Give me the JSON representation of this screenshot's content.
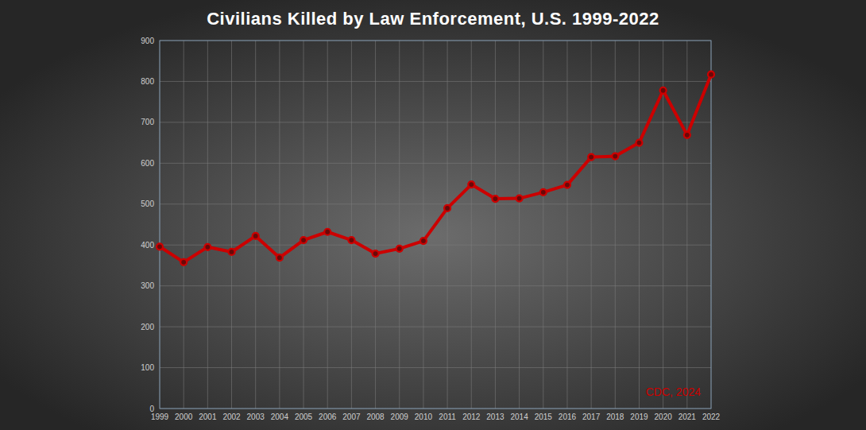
{
  "chart_data": {
    "type": "line",
    "title": "Civilians Killed by Law Enforcement, U.S. 1999-2022",
    "annotation": "CDC, 2024",
    "categories": [
      "1999",
      "2000",
      "2001",
      "2002",
      "2003",
      "2004",
      "2005",
      "2006",
      "2007",
      "2008",
      "2009",
      "2010",
      "2011",
      "2012",
      "2013",
      "2014",
      "2015",
      "2016",
      "2017",
      "2018",
      "2019",
      "2020",
      "2021",
      "2022"
    ],
    "values": [
      396,
      358,
      395,
      383,
      422,
      369,
      412,
      432,
      412,
      379,
      391,
      410,
      490,
      548,
      513,
      514,
      529,
      547,
      615,
      617,
      650,
      778,
      669,
      817
    ],
    "color": "#cc0000",
    "marker": "circle",
    "line_style": "solid",
    "ylim": [
      0,
      900
    ],
    "yticks": [
      0,
      100,
      200,
      300,
      400,
      500,
      600,
      700,
      800,
      900
    ],
    "grid": true
  }
}
